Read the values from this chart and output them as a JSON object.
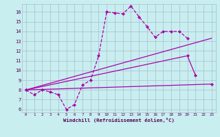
{
  "xlabel": "Windchill (Refroidissement éolien,°C)",
  "background_color": "#c8eef0",
  "grid_color": "#aabbcc",
  "xlim": [
    -0.5,
    23.5
  ],
  "ylim": [
    5.7,
    16.8
  ],
  "yticks": [
    6,
    7,
    8,
    9,
    10,
    11,
    12,
    13,
    14,
    15,
    16
  ],
  "xticks": [
    0,
    1,
    2,
    3,
    4,
    5,
    6,
    7,
    8,
    9,
    10,
    11,
    12,
    13,
    14,
    15,
    16,
    17,
    18,
    19,
    20,
    21,
    22,
    23
  ],
  "line_color": "#aa00aa",
  "curve1_x": [
    0,
    1,
    2,
    3,
    4,
    5,
    6,
    7,
    8,
    9,
    10,
    11,
    12,
    13,
    14,
    15,
    16,
    17,
    18,
    19,
    20
  ],
  "curve1_y": [
    8.0,
    7.5,
    8.0,
    7.8,
    7.5,
    6.0,
    6.5,
    8.5,
    9.0,
    11.5,
    16.0,
    15.9,
    15.8,
    16.6,
    15.5,
    14.5,
    13.4,
    14.0,
    14.0,
    14.0,
    13.3
  ],
  "curve2_x": [
    0,
    23
  ],
  "curve2_y": [
    8.0,
    8.6
  ],
  "curve3_x": [
    0,
    20,
    21
  ],
  "curve3_y": [
    8.0,
    11.5,
    9.5
  ],
  "curve4_x": [
    0,
    23
  ],
  "curve4_y": [
    8.0,
    13.3
  ]
}
